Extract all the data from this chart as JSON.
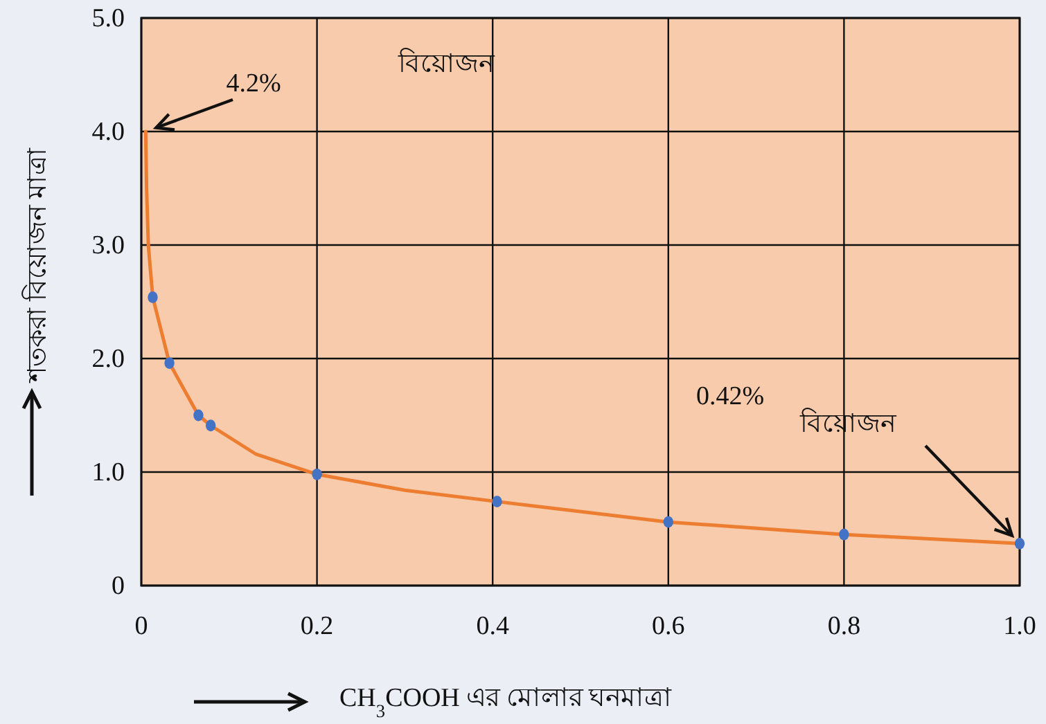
{
  "chart_data": {
    "type": "scatter",
    "xlabel": "CH$_{3}$COOH এর মোলার ঘনমাত্রা",
    "ylabel": "শতকরা বিয়োজন মাত্রা",
    "xlim": [
      0,
      1
    ],
    "ylim": [
      0,
      5
    ],
    "xticks": [
      0,
      0.2,
      0.4,
      0.6,
      0.8,
      {
        "value": 1,
        "label": "1.0"
      }
    ],
    "yticks": [
      0,
      {
        "value": 1,
        "label": "1.0"
      },
      {
        "value": 2,
        "label": "2.0"
      },
      {
        "value": 3,
        "label": "3.0"
      },
      {
        "value": 4,
        "label": "4.0"
      },
      {
        "value": 5,
        "label": "5.0"
      }
    ],
    "grid": true,
    "series": [
      {
        "type": "line",
        "color": "#ed7d31",
        "marker": "none",
        "x": [
          0.005,
          0.006,
          0.008,
          0.013,
          0.032,
          0.065,
          0.079,
          0.13,
          0.2,
          0.3,
          0.405,
          0.6,
          0.8,
          1.0
        ],
        "values": [
          4.0,
          3.5,
          3.0,
          2.54,
          1.96,
          1.5,
          1.41,
          1.16,
          0.98,
          0.84,
          0.74,
          0.56,
          0.45,
          0.37
        ]
      },
      {
        "type": "scatter",
        "color": "#4472c4",
        "marker": "circle",
        "x": [
          0.013,
          0.032,
          0.065,
          0.079,
          0.2,
          0.405,
          0.6,
          0.8,
          1.0
        ],
        "values": [
          2.54,
          1.96,
          1.5,
          1.41,
          0.98,
          0.74,
          0.56,
          0.45,
          0.37
        ]
      }
    ],
    "annotations": [
      {
        "text": "4.2%",
        "x": 0.005,
        "y": 4.0
      },
      "বিয়োজন",
      "0.42%",
      {
        "text": "বিয়োজন",
        "x": 1.0,
        "y": 0.37
      }
    ]
  }
}
